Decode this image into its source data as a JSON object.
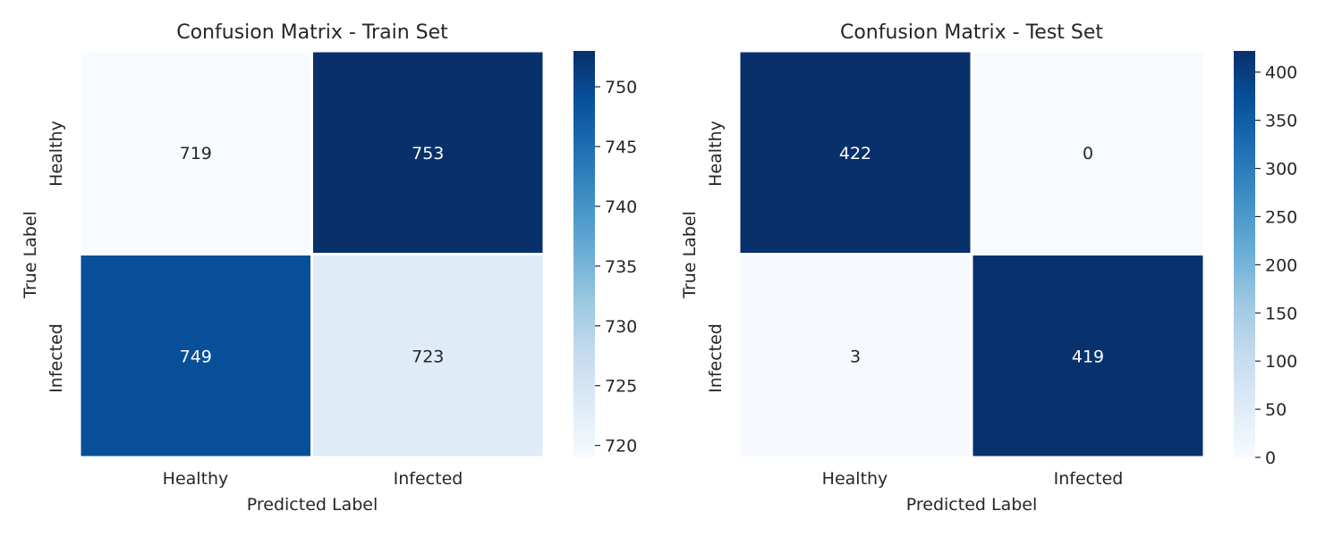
{
  "chart_data": [
    {
      "type": "heatmap",
      "title": "Confusion Matrix - Train Set",
      "xlabel": "Predicted Label",
      "ylabel": "True Label",
      "x_categories": [
        "Healthy",
        "Infected"
      ],
      "y_categories": [
        "Healthy",
        "Infected"
      ],
      "values": [
        [
          719,
          753
        ],
        [
          749,
          723
        ]
      ],
      "colormap": "Blues",
      "colorbar": {
        "range": [
          719,
          753
        ],
        "ticks": [
          720,
          725,
          730,
          735,
          740,
          745,
          750
        ]
      }
    },
    {
      "type": "heatmap",
      "title": "Confusion Matrix - Test Set",
      "xlabel": "Predicted Label",
      "ylabel": "True Label",
      "x_categories": [
        "Healthy",
        "Infected"
      ],
      "y_categories": [
        "Healthy",
        "Infected"
      ],
      "values": [
        [
          422,
          0
        ],
        [
          3,
          419
        ]
      ],
      "colormap": "Blues",
      "colorbar": {
        "range": [
          0,
          422
        ],
        "ticks": [
          0,
          50,
          100,
          150,
          200,
          250,
          300,
          350,
          400
        ]
      }
    }
  ]
}
